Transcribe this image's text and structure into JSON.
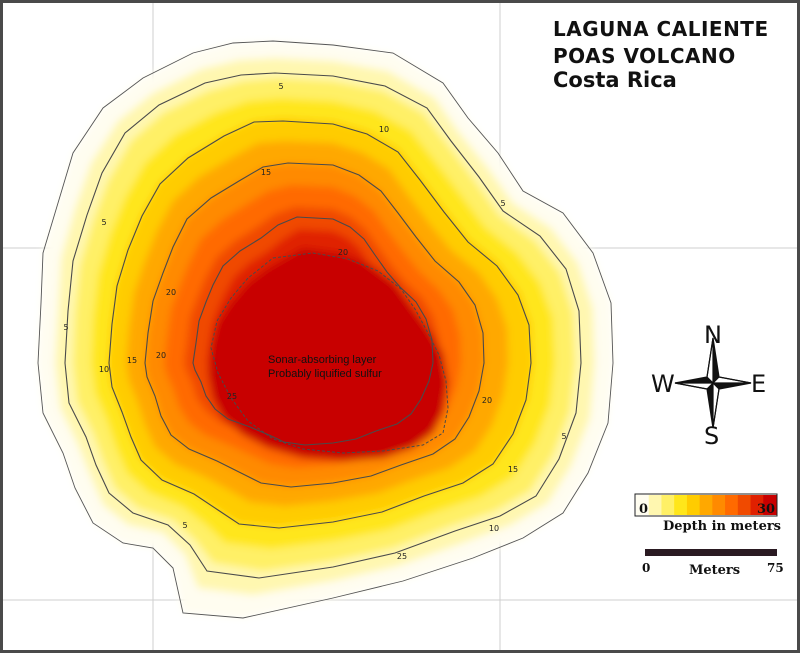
{
  "title": {
    "line1": "LAGUNA CALIENTE",
    "line2": "POAS VOLCANO",
    "line3": "Costa Rica"
  },
  "annotation": {
    "line1": "Sonar-absorbing layer",
    "line2": "Probably liquified sulfur"
  },
  "compass": {
    "north": "N",
    "south": "S",
    "east": "E",
    "west": "W"
  },
  "depth_legend": {
    "min": "0",
    "max": "30",
    "label": "Depth in meters",
    "colors": [
      "#fffdf0",
      "#fff7b0",
      "#fff066",
      "#ffe61a",
      "#ffcc00",
      "#ffa800",
      "#ff8a00",
      "#ff6a00",
      "#f04a00",
      "#e02000",
      "#c80000"
    ]
  },
  "scale_bar": {
    "min": "0",
    "max": "75",
    "label": "Meters"
  },
  "contour_labels": [
    "5",
    "5",
    "5",
    "5",
    "5",
    "5",
    "10",
    "10",
    "10",
    "15",
    "15",
    "15",
    "20",
    "20",
    "20",
    "20",
    "25",
    "25"
  ],
  "colors": {
    "shallow": "#fffdf0",
    "deep": "#c80000",
    "contour_line": "#4a4a4a",
    "grid_line": "#cfcfcf"
  }
}
